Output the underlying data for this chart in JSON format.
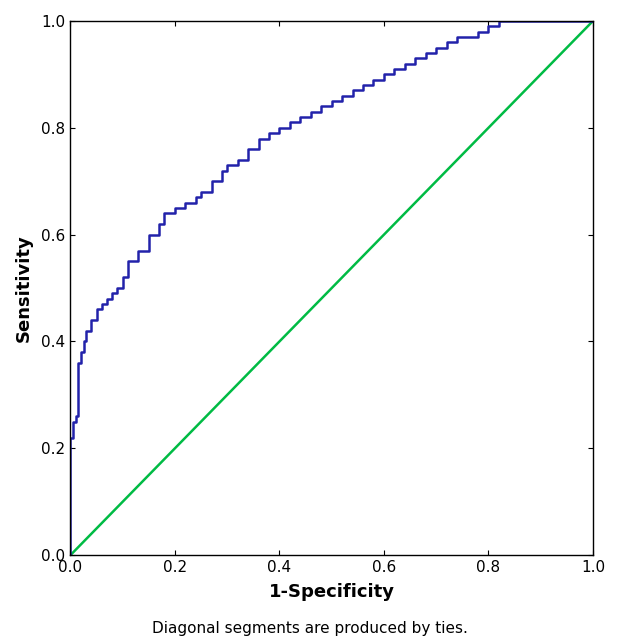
{
  "roc_fpr": [
    0.0,
    0.0,
    0.0,
    0.0,
    0.005,
    0.005,
    0.005,
    0.01,
    0.01,
    0.015,
    0.015,
    0.02,
    0.02,
    0.025,
    0.025,
    0.03,
    0.03,
    0.04,
    0.04,
    0.05,
    0.05,
    0.06,
    0.06,
    0.07,
    0.07,
    0.08,
    0.08,
    0.09,
    0.09,
    0.1,
    0.1,
    0.11,
    0.11,
    0.13,
    0.13,
    0.15,
    0.15,
    0.17,
    0.17,
    0.18,
    0.18,
    0.2,
    0.2,
    0.22,
    0.22,
    0.24,
    0.24,
    0.25,
    0.25,
    0.27,
    0.27,
    0.29,
    0.29,
    0.3,
    0.3,
    0.32,
    0.32,
    0.34,
    0.34,
    0.36,
    0.36,
    0.38,
    0.38,
    0.4,
    0.4,
    0.42,
    0.42,
    0.44,
    0.44,
    0.46,
    0.46,
    0.48,
    0.48,
    0.5,
    0.5,
    0.52,
    0.52,
    0.54,
    0.54,
    0.56,
    0.56,
    0.58,
    0.58,
    0.6,
    0.6,
    0.62,
    0.62,
    0.64,
    0.64,
    0.66,
    0.66,
    0.68,
    0.68,
    0.7,
    0.7,
    0.72,
    0.72,
    0.74,
    0.74,
    0.76,
    0.76,
    0.78,
    0.78,
    0.8,
    0.8,
    0.82,
    0.82,
    0.84,
    0.84,
    0.85,
    0.85,
    0.97,
    0.97,
    1.0
  ],
  "roc_tpr": [
    0.0,
    0.05,
    0.1,
    0.22,
    0.22,
    0.24,
    0.25,
    0.25,
    0.26,
    0.26,
    0.36,
    0.36,
    0.38,
    0.38,
    0.4,
    0.4,
    0.42,
    0.42,
    0.44,
    0.44,
    0.46,
    0.46,
    0.47,
    0.47,
    0.48,
    0.48,
    0.49,
    0.49,
    0.5,
    0.5,
    0.52,
    0.52,
    0.55,
    0.55,
    0.57,
    0.57,
    0.6,
    0.6,
    0.62,
    0.62,
    0.64,
    0.64,
    0.65,
    0.65,
    0.66,
    0.66,
    0.67,
    0.67,
    0.68,
    0.68,
    0.7,
    0.7,
    0.72,
    0.72,
    0.73,
    0.73,
    0.74,
    0.74,
    0.76,
    0.76,
    0.78,
    0.78,
    0.79,
    0.79,
    0.8,
    0.8,
    0.81,
    0.81,
    0.82,
    0.82,
    0.83,
    0.83,
    0.84,
    0.84,
    0.85,
    0.85,
    0.86,
    0.86,
    0.87,
    0.87,
    0.88,
    0.88,
    0.89,
    0.89,
    0.9,
    0.9,
    0.91,
    0.91,
    0.92,
    0.92,
    0.93,
    0.93,
    0.94,
    0.94,
    0.95,
    0.95,
    0.96,
    0.96,
    0.97,
    0.97,
    0.97,
    0.97,
    0.98,
    0.98,
    0.99,
    0.99,
    1.0,
    1.0,
    1.0,
    1.0,
    1.0,
    1.0,
    1.0,
    1.0
  ],
  "roc_color": "#2222aa",
  "diag_color": "#00bb44",
  "roc_linewidth": 1.8,
  "diag_linewidth": 1.8,
  "xlabel": "1-Specificity",
  "ylabel": "Sensitivity",
  "footnote": "Diagonal segments are produced by ties.",
  "xlabel_fontsize": 13,
  "ylabel_fontsize": 13,
  "footnote_fontsize": 11,
  "tick_fontsize": 11,
  "xlim": [
    0.0,
    1.0
  ],
  "ylim": [
    0.0,
    1.0
  ],
  "xticks": [
    0,
    0.2,
    0.4,
    0.6,
    0.8,
    1.0
  ],
  "yticks": [
    0,
    0.2,
    0.4,
    0.6,
    0.8,
    1.0
  ],
  "background_color": "#ffffff"
}
